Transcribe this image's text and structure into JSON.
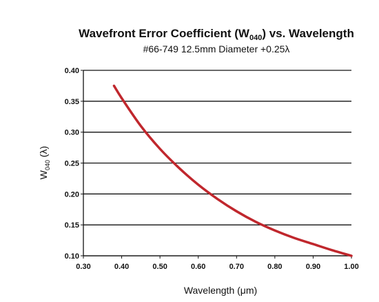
{
  "chart_data": {
    "type": "line",
    "title_pre": "Wavefront Error Coefficient (W",
    "title_sub": "040",
    "title_post": ") vs. Wavelength",
    "subtitle": "#66-749 12.5mm Diameter +0.25λ",
    "xlabel": "Wavelength (μm)",
    "ylabel_main": "W",
    "ylabel_sub": "040",
    "ylabel_unit": " (λ)",
    "xlim": [
      0.3,
      1.0
    ],
    "ylim": [
      0.1,
      0.4
    ],
    "x_ticks": [
      "0.30",
      "0.40",
      "0.50",
      "0.60",
      "0.70",
      "0.80",
      "0.90",
      "1.00"
    ],
    "y_ticks": [
      "0.10",
      "0.15",
      "0.20",
      "0.25",
      "0.30",
      "0.35",
      "0.40"
    ],
    "grid": "horizontal",
    "series_color": "#c0272d",
    "series": [
      {
        "x": [
          0.38,
          0.4,
          0.45,
          0.5,
          0.55,
          0.6,
          0.65,
          0.7,
          0.75,
          0.8,
          0.85,
          0.9,
          0.95,
          1.0
        ],
        "y": [
          0.375,
          0.355,
          0.31,
          0.273,
          0.242,
          0.215,
          0.192,
          0.172,
          0.155,
          0.141,
          0.129,
          0.119,
          0.109,
          0.1
        ]
      }
    ]
  }
}
